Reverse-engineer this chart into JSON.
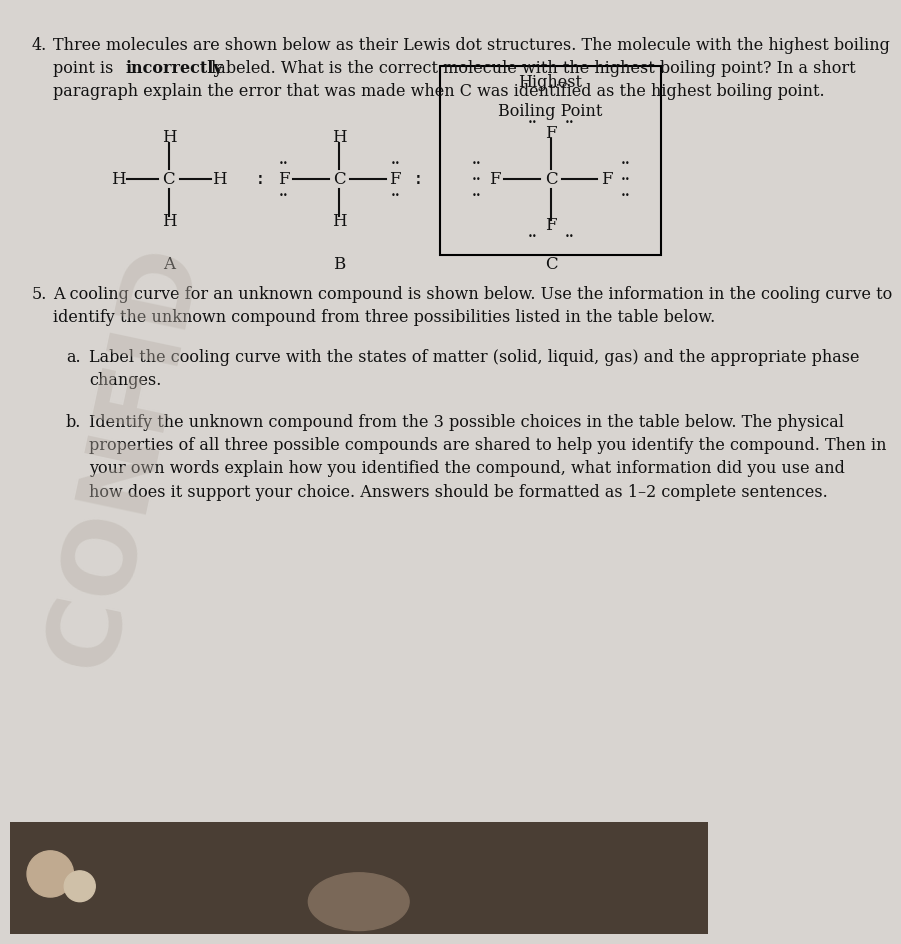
{
  "bg_color": "#d8d4d0",
  "text_color": "#111111",
  "font_size_main": 11.5,
  "font_size_mol": 12,
  "q4_line1": "Three molecules are shown below as their Lewis dot structures. The molecule with the highest boiling",
  "q4_line2a": "point is ",
  "q4_line2b": "incorrectly",
  "q4_line2c": " labeled. What is the correct molecule with the highest boiling point? In a short",
  "q4_line3": "paragraph explain the error that was made when C was identified as the highest boiling point.",
  "box_title1": "Highest",
  "box_title2": "Boiling Point",
  "mol_a_label": "A",
  "mol_b_label": "B",
  "mol_c_label": "C",
  "q5_line1": "A cooling curve for an unknown compound is shown below. Use the information in the cooling curve to",
  "q5_line2": "identify the unknown compound from three possibilities listed in the table below.",
  "q5a_line1": "Label the cooling curve with the states of matter (solid, liquid, gas) and the appropriate phase",
  "q5a_line2": "changes.",
  "q5b_line1": "Identify the unknown compound from the 3 possible choices in the table below. The physical",
  "q5b_line2": "properties of all three possible compounds are shared to help you identify the compound. Then in",
  "q5b_line3": "your own words explain how you identified the compound, what information did you use and",
  "q5b_line4": "how does it support your choice. Answers should be formatted as 1–2 complete sentences.",
  "watermark": "CONFID"
}
